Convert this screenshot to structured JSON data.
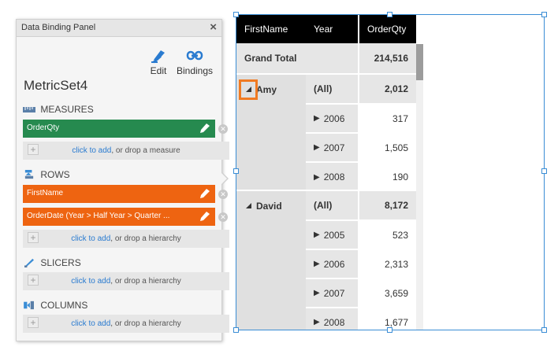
{
  "panel": {
    "title": "Data Binding Panel",
    "close": "×",
    "edit_label": "Edit",
    "bindings_label": "Bindings",
    "metric_title": "MetricSet4",
    "sections": {
      "measures": "MEASURES",
      "rows": "ROWS",
      "slicers": "SLICERS",
      "columns": "COLUMNS"
    },
    "measures": [
      {
        "label": "OrderQty"
      }
    ],
    "rows": [
      {
        "label": "FirstName"
      },
      {
        "label": "OrderDate (Year > Half Year > Quarter ..."
      }
    ],
    "drop": {
      "link": "click to add",
      "measure_suffix": ", or drop a measure",
      "hierarchy_suffix": ", or drop a hierarchy"
    },
    "colors": {
      "measure": "#268a4f",
      "row": "#ee6411",
      "link": "#2a7bd0"
    }
  },
  "pivot": {
    "headers": {
      "first_name": "FirstName",
      "year": "Year",
      "order_qty": "OrderQty"
    },
    "grand_total": {
      "label": "Grand Total",
      "value": "214,516"
    },
    "groups": [
      {
        "name": "Amy",
        "all_label": "(All)",
        "all_value": "2,012",
        "years": [
          {
            "year": "2006",
            "value": "317"
          },
          {
            "year": "2007",
            "value": "1,505"
          },
          {
            "year": "2008",
            "value": "190"
          }
        ]
      },
      {
        "name": "David",
        "all_label": "(All)",
        "all_value": "8,172",
        "years": [
          {
            "year": "2005",
            "value": "523"
          },
          {
            "year": "2006",
            "value": "2,313"
          },
          {
            "year": "2007",
            "value": "3,659"
          },
          {
            "year": "2008",
            "value": "1,677"
          }
        ]
      }
    ],
    "colors": {
      "header": "#000000",
      "highlight": "#f07a22",
      "selection": "#3a8dd5"
    }
  }
}
